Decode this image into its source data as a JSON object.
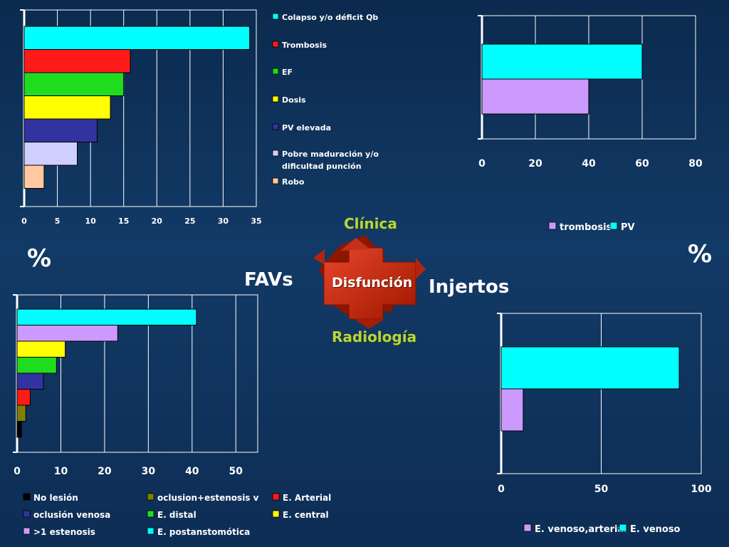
{
  "labels": {
    "pct_left": "%",
    "pct_right": "%",
    "favs": "FAVs",
    "injertos": "Injertos",
    "clinica": "Clínica",
    "radiologia": "Radiología",
    "disfuncion": "Disfunción"
  },
  "colors": {
    "cyan": "#00ffff",
    "red": "#ff1a1a",
    "green": "#1fdc1f",
    "yellow": "#ffff00",
    "navy": "#3333a0",
    "lavender": "#cfcfff",
    "peach": "#ffc8a0",
    "violet": "#cc99ff",
    "olive": "#808000",
    "black": "#000000",
    "arrow": "#cc2200"
  },
  "chart_data": [
    {
      "id": "tl",
      "type": "bar",
      "orientation": "horizontal",
      "categories": [
        "Colapso y/o déficit Qb",
        "Trombosis",
        "EF",
        "Dosis",
        "PV elevada",
        "Pobre maduración y/o\ndificultad punción",
        "Robo"
      ],
      "values": [
        34,
        16,
        15,
        13,
        11,
        8,
        3
      ],
      "colors": [
        "cyan",
        "red",
        "green",
        "yellow",
        "navy",
        "lavender",
        "peach"
      ],
      "ticks": [
        0,
        5,
        10,
        15,
        20,
        25,
        30,
        35
      ],
      "xlim": [
        0,
        35
      ],
      "grid": true,
      "legend": "right",
      "legend_entries": [
        "Colapso y/o déficit Qb",
        "Trombosis",
        "EF",
        "Dosis",
        "PV elevada",
        "Pobre maduración y/o dificultad punción",
        "Robo"
      ]
    },
    {
      "id": "tr",
      "type": "bar",
      "orientation": "horizontal",
      "categories": [
        "PV",
        "trombosis"
      ],
      "values": [
        60,
        40
      ],
      "colors": [
        "cyan",
        "violet"
      ],
      "ticks": [
        0,
        20,
        40,
        60,
        80
      ],
      "xlim": [
        0,
        80
      ],
      "grid": true,
      "legend": "bottom",
      "legend_entries": [
        "trombosis",
        "PV"
      ],
      "legend_colors": [
        "violet",
        "cyan"
      ]
    },
    {
      "id": "bl",
      "type": "bar",
      "orientation": "horizontal",
      "categories": [
        "E. postanstomótica",
        ">1 estenosis",
        "E. central",
        "E. distal",
        "oclusión venosa",
        "E. Arterial",
        "oclusion+estenosis v",
        "No lesión"
      ],
      "values": [
        41,
        23,
        11,
        9,
        6,
        3,
        2,
        1
      ],
      "colors": [
        "cyan",
        "violet",
        "yellow",
        "green",
        "navy",
        "red",
        "olive",
        "black"
      ],
      "ticks": [
        0,
        10,
        20,
        30,
        40,
        50
      ],
      "xlim": [
        0,
        55
      ],
      "grid": true,
      "legend": "bottom",
      "legend_entries": [
        "No lesión",
        "oclusion+estenosis v",
        "E. Arterial",
        "oclusión venosa",
        "E. distal",
        "E. central",
        ">1 estenosis",
        "E. postanstomótica"
      ],
      "legend_colors": [
        "black",
        "olive",
        "red",
        "navy",
        "green",
        "yellow",
        "violet",
        "cyan"
      ]
    },
    {
      "id": "br",
      "type": "bar",
      "orientation": "horizontal",
      "categories": [
        "E.  venoso",
        "E. venoso,arterial"
      ],
      "values": [
        89,
        11
      ],
      "colors": [
        "cyan",
        "violet"
      ],
      "ticks": [
        0,
        50,
        100
      ],
      "xlim": [
        0,
        100
      ],
      "grid": true,
      "legend": "bottom",
      "legend_entries": [
        "E. venoso,arterial",
        "E.  venoso"
      ],
      "legend_colors": [
        "violet",
        "cyan"
      ]
    }
  ]
}
